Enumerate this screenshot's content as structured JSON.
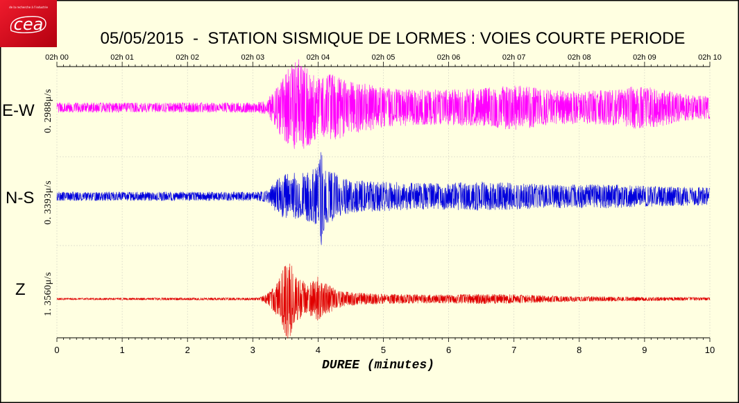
{
  "logo": {
    "text": "cea",
    "tagline": "de la recherche à l'industrie",
    "color": "#e2001a"
  },
  "colors": {
    "background": "#ffffe1"
  },
  "chart_data": {
    "type": "line",
    "title": "05/05/2015  -  STATION SISMIQUE DE LORMES : VOIES COURTE PERIODE",
    "xlabel": "DUREE (minutes)",
    "ylabel": "",
    "xlim": [
      0,
      10
    ],
    "x_ticks": [
      "0",
      "1",
      "2",
      "3",
      "4",
      "5",
      "6",
      "7",
      "8",
      "9",
      "10"
    ],
    "time_ticks": [
      "02h 00",
      "02h 01",
      "02h 02",
      "02h 03",
      "02h 04",
      "02h 05",
      "02h 06",
      "02h 07",
      "02h 08",
      "02h 09",
      "02h 10"
    ],
    "grid": true,
    "series": [
      {
        "name": "E-W",
        "scale_label": "0. 2988μ/s",
        "full_scale": 0.2988,
        "color": "#ff00ff",
        "envelope": [
          [
            0,
            0.03
          ],
          [
            3.0,
            0.03
          ],
          [
            3.2,
            0.04
          ],
          [
            3.3,
            0.09
          ],
          [
            3.45,
            0.19
          ],
          [
            3.6,
            0.27
          ],
          [
            3.7,
            0.2988
          ],
          [
            3.85,
            0.24
          ],
          [
            4.0,
            0.18
          ],
          [
            4.15,
            0.2
          ],
          [
            4.3,
            0.22
          ],
          [
            4.45,
            0.16
          ],
          [
            4.7,
            0.15
          ],
          [
            5.0,
            0.12
          ],
          [
            5.5,
            0.11
          ],
          [
            6.0,
            0.11
          ],
          [
            6.5,
            0.12
          ],
          [
            6.8,
            0.13
          ],
          [
            7.0,
            0.14
          ],
          [
            7.5,
            0.11
          ],
          [
            8.0,
            0.1
          ],
          [
            8.5,
            0.11
          ],
          [
            8.8,
            0.13
          ],
          [
            9.2,
            0.12
          ],
          [
            9.6,
            0.08
          ],
          [
            10,
            0.07
          ]
        ]
      },
      {
        "name": "N-S",
        "scale_label": "0. 3393μ/s",
        "full_scale": 0.3393,
        "color": "#0000dd",
        "envelope": [
          [
            0,
            0.03
          ],
          [
            3.1,
            0.03
          ],
          [
            3.25,
            0.05
          ],
          [
            3.4,
            0.13
          ],
          [
            3.55,
            0.17
          ],
          [
            3.7,
            0.15
          ],
          [
            3.85,
            0.17
          ],
          [
            4.0,
            0.2
          ],
          [
            4.05,
            0.3393
          ],
          [
            4.1,
            0.2
          ],
          [
            4.3,
            0.15
          ],
          [
            4.5,
            0.11
          ],
          [
            5.0,
            0.1
          ],
          [
            5.5,
            0.09
          ],
          [
            6.0,
            0.09
          ],
          [
            6.5,
            0.1
          ],
          [
            7.0,
            0.09
          ],
          [
            7.5,
            0.08
          ],
          [
            8.0,
            0.08
          ],
          [
            8.5,
            0.08
          ],
          [
            9.0,
            0.07
          ],
          [
            10,
            0.06
          ]
        ]
      },
      {
        "name": "Z",
        "scale_label": "1. 3560μ/s",
        "full_scale": 1.356,
        "color": "#e00000",
        "envelope": [
          [
            0,
            0.03
          ],
          [
            3.1,
            0.04
          ],
          [
            3.25,
            0.2
          ],
          [
            3.4,
            0.6
          ],
          [
            3.55,
            1.356
          ],
          [
            3.65,
            0.7
          ],
          [
            3.8,
            0.55
          ],
          [
            3.95,
            0.55
          ],
          [
            4.0,
            0.7
          ],
          [
            4.1,
            0.5
          ],
          [
            4.3,
            0.28
          ],
          [
            4.5,
            0.2
          ],
          [
            5.0,
            0.15
          ],
          [
            5.5,
            0.14
          ],
          [
            6.0,
            0.13
          ],
          [
            6.5,
            0.15
          ],
          [
            7.0,
            0.14
          ],
          [
            7.5,
            0.1
          ],
          [
            8.0,
            0.08
          ],
          [
            8.5,
            0.07
          ],
          [
            9.0,
            0.06
          ],
          [
            10,
            0.05
          ]
        ]
      }
    ]
  }
}
